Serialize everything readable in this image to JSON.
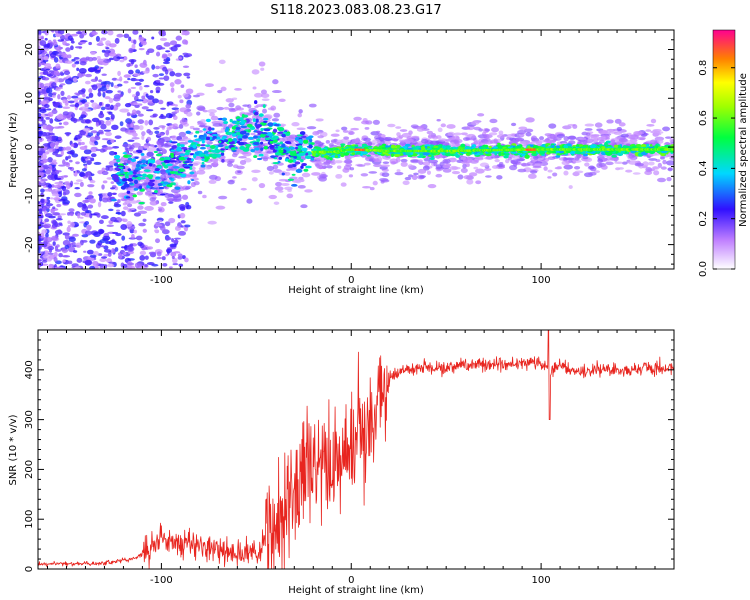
{
  "title": "S118.2023.083.08.23.G17",
  "chart_data": [
    {
      "type": "heatmap",
      "xlabel": "Height of straight line (km)",
      "ylabel": "Frequency (Hz)",
      "xlim": [
        -165,
        170
      ],
      "ylim": [
        -25,
        24
      ],
      "xticks": [
        -100,
        0,
        100
      ],
      "yticks": [
        -20,
        -10,
        0,
        10,
        20
      ],
      "colorbar": {
        "label": "Normalized spectral amplitude",
        "range": [
          0,
          0.95
        ],
        "ticks": [
          "0.0",
          "0.2",
          "0.4",
          "0.6",
          "0.8"
        ]
      },
      "ridge": {
        "x": [
          -120,
          -100,
          -90,
          -80,
          -70,
          -60,
          -50,
          -45,
          -40,
          -35,
          -30,
          -25,
          -20,
          -10,
          0,
          20,
          50,
          80,
          100,
          120,
          150,
          170
        ],
        "y": [
          -6,
          -5,
          -3,
          0,
          1.5,
          2.5,
          3,
          2.5,
          1,
          -1,
          -2,
          -1.5,
          -1,
          -1,
          -0.5,
          -0.8,
          -0.8,
          -0.6,
          -0.5,
          -0.5,
          -0.5,
          -0.5
        ]
      }
    },
    {
      "type": "line",
      "xlabel": "Height of straight line (km)",
      "ylabel": "SNR (10 * v/v)",
      "xlim": [
        -165,
        170
      ],
      "ylim": [
        0,
        480
      ],
      "xticks": [
        -100,
        0,
        100
      ],
      "yticks": [
        0,
        100,
        200,
        300,
        400
      ],
      "color": "#e8251f",
      "profile": {
        "x": [
          -165,
          -130,
          -115,
          -105,
          -100,
          -90,
          -80,
          -70,
          -60,
          -50,
          -45,
          -40,
          -35,
          -30,
          -25,
          -20,
          -15,
          -10,
          -5,
          0,
          5,
          10,
          15,
          20,
          25,
          30,
          40,
          50,
          60,
          70,
          80,
          90,
          100,
          105,
          110,
          120,
          130,
          150,
          170
        ],
        "y": [
          10,
          12,
          20,
          40,
          60,
          50,
          45,
          40,
          30,
          35,
          50,
          80,
          110,
          150,
          180,
          200,
          210,
          200,
          220,
          210,
          260,
          300,
          350,
          380,
          395,
          400,
          405,
          405,
          410,
          410,
          410,
          415,
          415,
          400,
          410,
          395,
          400,
          400,
          405
        ]
      }
    }
  ]
}
